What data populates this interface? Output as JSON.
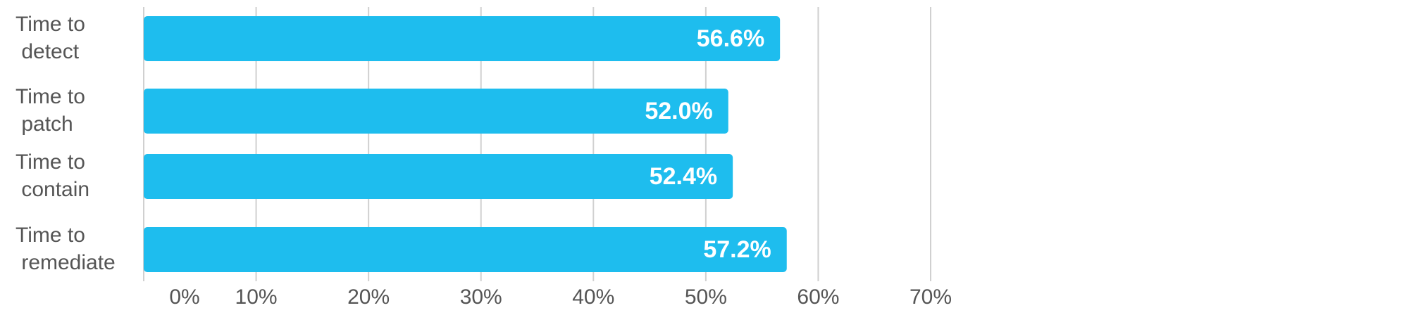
{
  "chart_data": {
    "type": "barh",
    "categories": [
      "Time to detect",
      "Time to patch",
      "Time to contain",
      "Time to remediate"
    ],
    "values": [
      56.6,
      52.0,
      52.4,
      57.2
    ],
    "value_labels": [
      "56.6%",
      "52.0%",
      "52.4%",
      "57.2%"
    ],
    "color": "#1ebdee",
    "xlim": [
      0,
      70
    ],
    "xticks": [
      {
        "value": 0,
        "label": "0%"
      },
      {
        "value": 10,
        "label": "10%"
      },
      {
        "value": 20,
        "label": "20%"
      },
      {
        "value": 30,
        "label": "30%"
      },
      {
        "value": 40,
        "label": "40%"
      },
      {
        "value": 50,
        "label": "50%"
      },
      {
        "value": 60,
        "label": "60%"
      },
      {
        "value": 70,
        "label": "70%"
      }
    ],
    "grid": true
  }
}
